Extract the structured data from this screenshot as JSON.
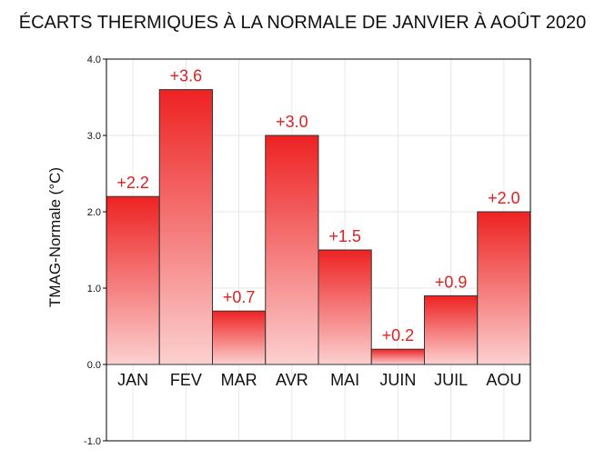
{
  "chart_data": {
    "type": "bar",
    "title": "ÉCARTS THERMIQUES À LA NORMALE DE JANVIER À AOÛT 2020",
    "xlabel": "",
    "ylabel": "TMAG-Normale (°C)",
    "categories": [
      "JAN",
      "FEV",
      "MAR",
      "AVR",
      "MAI",
      "JUIN",
      "JUIL",
      "AOU"
    ],
    "values": [
      2.2,
      3.6,
      0.7,
      3.0,
      1.5,
      0.2,
      0.9,
      2.0
    ],
    "data_labels": [
      "+2.2",
      "+3.6",
      "+0.7",
      "+3.0",
      "+1.5",
      "+0.2",
      "+0.9",
      "+2.0"
    ],
    "ylim": [
      -1.0,
      4.0
    ],
    "yticks": [
      -1.0,
      0.0,
      1.0,
      2.0,
      3.0,
      4.0
    ],
    "ytick_labels": [
      "-1.0",
      "0.0",
      "1.0",
      "2.0",
      "3.0",
      "4.0"
    ],
    "grid": true,
    "legend": "none",
    "colors": {
      "bar_top": "#ee2222",
      "bar_bottom": "#fcd0d0",
      "label": "#dd2222",
      "axis": "#000000",
      "grid": "#e6e6e6"
    }
  }
}
